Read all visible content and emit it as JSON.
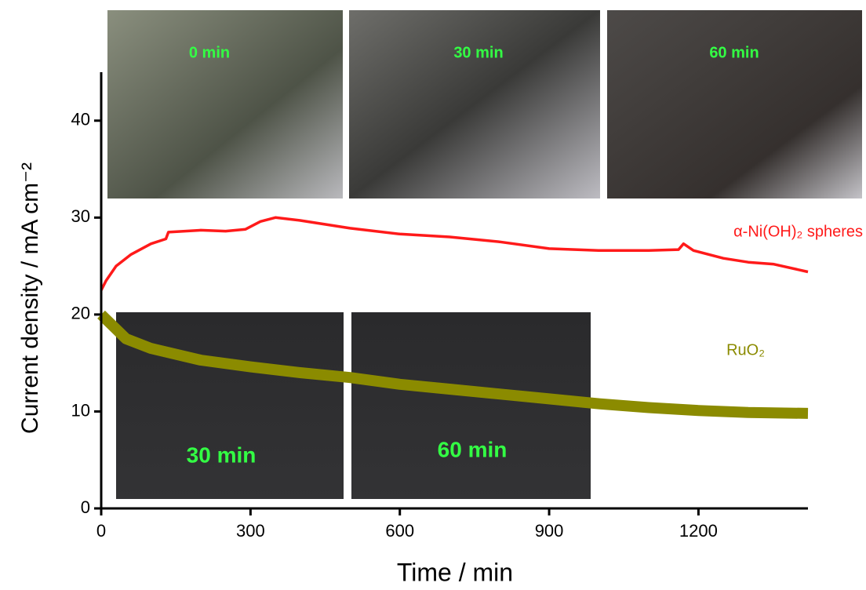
{
  "chart_data": {
    "type": "line",
    "x_label": "Time / min",
    "y_label": "Current density / mA cm⁻²",
    "xlim": [
      0,
      1420
    ],
    "xticks": [
      0,
      300,
      600,
      900,
      1200
    ],
    "ylim": [
      0,
      45
    ],
    "yticks": [
      0,
      10,
      20,
      30,
      40
    ],
    "series": [
      {
        "name": "α-Ni(OH)₂ spheres",
        "color": "#ff1a1a",
        "x": [
          0,
          10,
          30,
          60,
          100,
          130,
          135,
          200,
          250,
          290,
          320,
          350,
          400,
          500,
          600,
          700,
          800,
          900,
          1000,
          1100,
          1160,
          1170,
          1190,
          1250,
          1300,
          1350,
          1420
        ],
        "values": [
          22.5,
          23.5,
          25,
          26.2,
          27.3,
          27.8,
          28.5,
          28.7,
          28.6,
          28.8,
          29.6,
          30,
          29.7,
          28.9,
          28.3,
          28,
          27.5,
          26.8,
          26.6,
          26.6,
          26.7,
          27.3,
          26.6,
          25.8,
          25.4,
          25.2,
          24.4
        ]
      },
      {
        "name": "RuO₂",
        "color": "#8b8b00",
        "x": [
          0,
          50,
          100,
          200,
          300,
          400,
          500,
          600,
          700,
          800,
          900,
          1000,
          1100,
          1200,
          1300,
          1420
        ],
        "values": [
          20,
          17.5,
          16.5,
          15.3,
          14.6,
          14,
          13.5,
          12.8,
          12.3,
          11.8,
          11.3,
          10.8,
          10.4,
          10.1,
          9.9,
          9.8
        ]
      }
    ],
    "annotations": [
      "0 min",
      "30 min",
      "60 min",
      "30 min",
      "60 min"
    ]
  }
}
